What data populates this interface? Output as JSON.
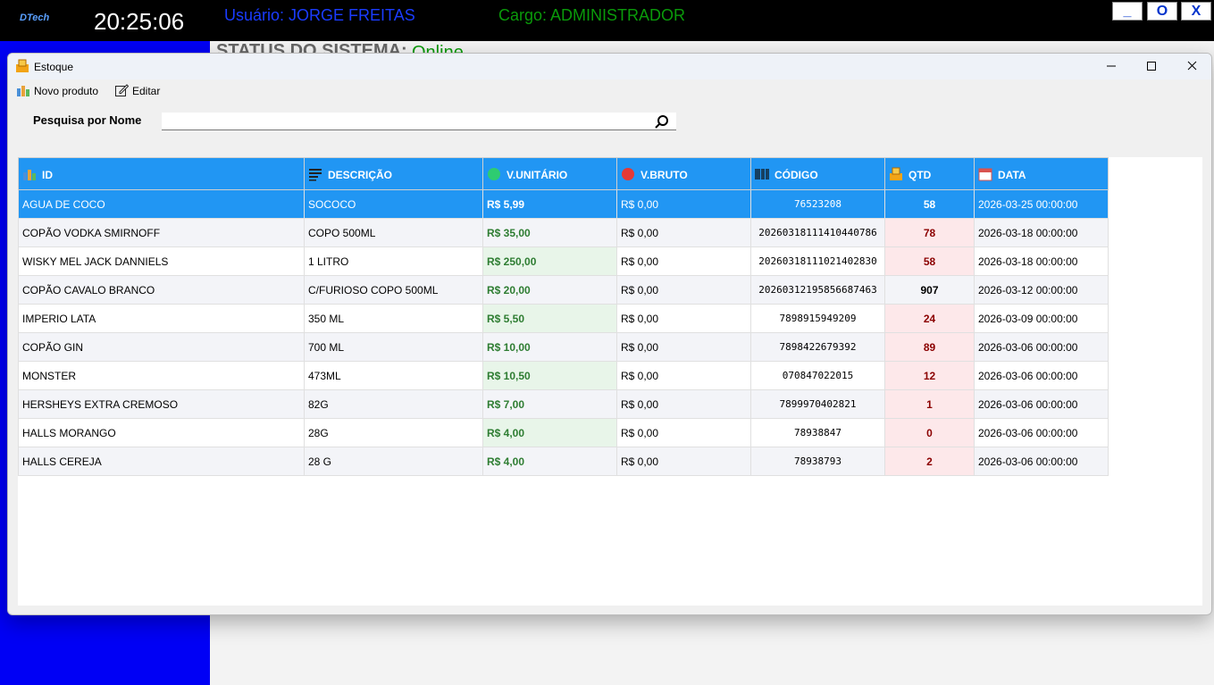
{
  "app_bar": {
    "logo": "DTech",
    "clock": "20:25:06",
    "user": "Usuário: JORGE FREITAS",
    "role": "Cargo: ADMINISTRADOR",
    "buttons": [
      "_",
      "O",
      "X"
    ]
  },
  "status": {
    "label": "STATUS DO SISTEMA:",
    "value": "Online"
  },
  "window": {
    "title": "Estoque",
    "toolbar": [
      "Novo produto",
      "Editar"
    ],
    "search_label": "Pesquisa por Nome"
  },
  "table": {
    "columns": [
      "ID",
      "DESCRIÇÃO",
      "V.UNITÁRIO",
      "V.BRUTO",
      "CÓDIGO",
      "QTD",
      "DATA"
    ],
    "rows": [
      [
        "AGUA DE COCO",
        "SOCOCO",
        "R$ 5,99",
        "R$ 0,00",
        "76523208",
        "58",
        "2026-03-25 00:00:00"
      ],
      [
        "COPÃO VODKA SMIRNOFF",
        "COPO 500ML",
        "R$ 35,00",
        "R$ 0,00",
        "20260318111410440786",
        "78",
        "2026-03-18 00:00:00"
      ],
      [
        "WISKY MEL JACK DANNIELS",
        "1 LITRO",
        "R$ 250,00",
        "R$ 0,00",
        "20260318111021402830",
        "58",
        "2026-03-18 00:00:00"
      ],
      [
        "COPÃO CAVALO BRANCO",
        "C/FURIOSO COPO 500ML",
        "R$ 20,00",
        "R$ 0,00",
        "20260312195856687463",
        "907",
        "2026-03-12 00:00:00"
      ],
      [
        "IMPERIO LATA",
        "350 ML",
        "R$ 5,50",
        "R$ 0,00",
        "7898915949209",
        "24",
        "2026-03-09 00:00:00"
      ],
      [
        "COPÃO GIN",
        "700 ML",
        "R$ 10,00",
        "R$ 0,00",
        "7898422679392",
        "89",
        "2026-03-06 00:00:00"
      ],
      [
        "MONSTER",
        "473ML",
        "R$ 10,50",
        "R$ 0,00",
        "070847022015",
        "12",
        "2026-03-06 00:00:00"
      ],
      [
        "HERSHEYS EXTRA CREMOSO",
        "82G",
        "R$ 7,00",
        "R$ 0,00",
        "7899970402821",
        "1",
        "2026-03-06 00:00:00"
      ],
      [
        "HALLS MORANGO",
        "28G",
        "R$ 4,00",
        "R$ 0,00",
        "78938847",
        "0",
        "2026-03-06 00:00:00"
      ],
      [
        "HALLS CEREJA",
        "28 G",
        "R$ 4,00",
        "R$ 0,00",
        "78938793",
        "2",
        "2026-03-06 00:00:00"
      ]
    ]
  }
}
